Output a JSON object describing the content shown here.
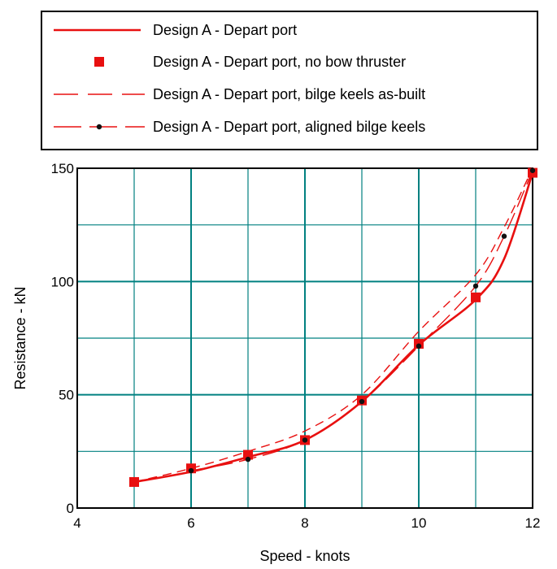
{
  "chart_data": {
    "type": "line",
    "title": "",
    "xlabel": "Speed - knots",
    "ylabel": "Resistance - kN",
    "xlim": [
      4,
      12
    ],
    "ylim": [
      0,
      150
    ],
    "x_ticks": [
      4,
      6,
      8,
      10,
      12
    ],
    "y_ticks": [
      0,
      50,
      100,
      150
    ],
    "x_grid": [
      4,
      5,
      6,
      7,
      8,
      9,
      10,
      11,
      12
    ],
    "y_grid": [
      0,
      25,
      50,
      75,
      100,
      125,
      150
    ],
    "grid": true,
    "legend_position": "top",
    "series": [
      {
        "name": "Design A - Depart port",
        "style": "solid-thick",
        "color": "#e81010",
        "x": [
          5,
          6,
          7,
          8,
          9,
          10,
          11,
          11.5,
          12
        ],
        "y": [
          11.5,
          16,
          22.5,
          30,
          47,
          72,
          92,
          110,
          148
        ]
      },
      {
        "name": "Design A - Depart port, no bow thruster",
        "style": "square-markers",
        "color": "#e81010",
        "x": [
          5,
          6,
          7,
          8,
          9,
          10,
          11,
          12
        ],
        "y": [
          11.5,
          17.5,
          23.5,
          30,
          47.5,
          72.5,
          93,
          148
        ]
      },
      {
        "name": "Design A - Depart port, bilge keels as-built",
        "style": "dashed",
        "color": "#e81010",
        "x": [
          5,
          6,
          7,
          8,
          9,
          10,
          11,
          11.5,
          12
        ],
        "y": [
          11.5,
          17.5,
          25,
          34,
          50,
          78,
          103,
          124,
          150
        ]
      },
      {
        "name": "Design A - Depart port, aligned bilge keels",
        "style": "long-dash-dot-markers",
        "color": "#e81010",
        "x": [
          6,
          7,
          8,
          9,
          10,
          11,
          11.5,
          12
        ],
        "y": [
          16.5,
          21.5,
          30,
          47,
          71.5,
          98,
          120,
          149
        ]
      }
    ]
  },
  "colors": {
    "series": "#e81010",
    "grid": "#008080",
    "axis": "#000000"
  }
}
